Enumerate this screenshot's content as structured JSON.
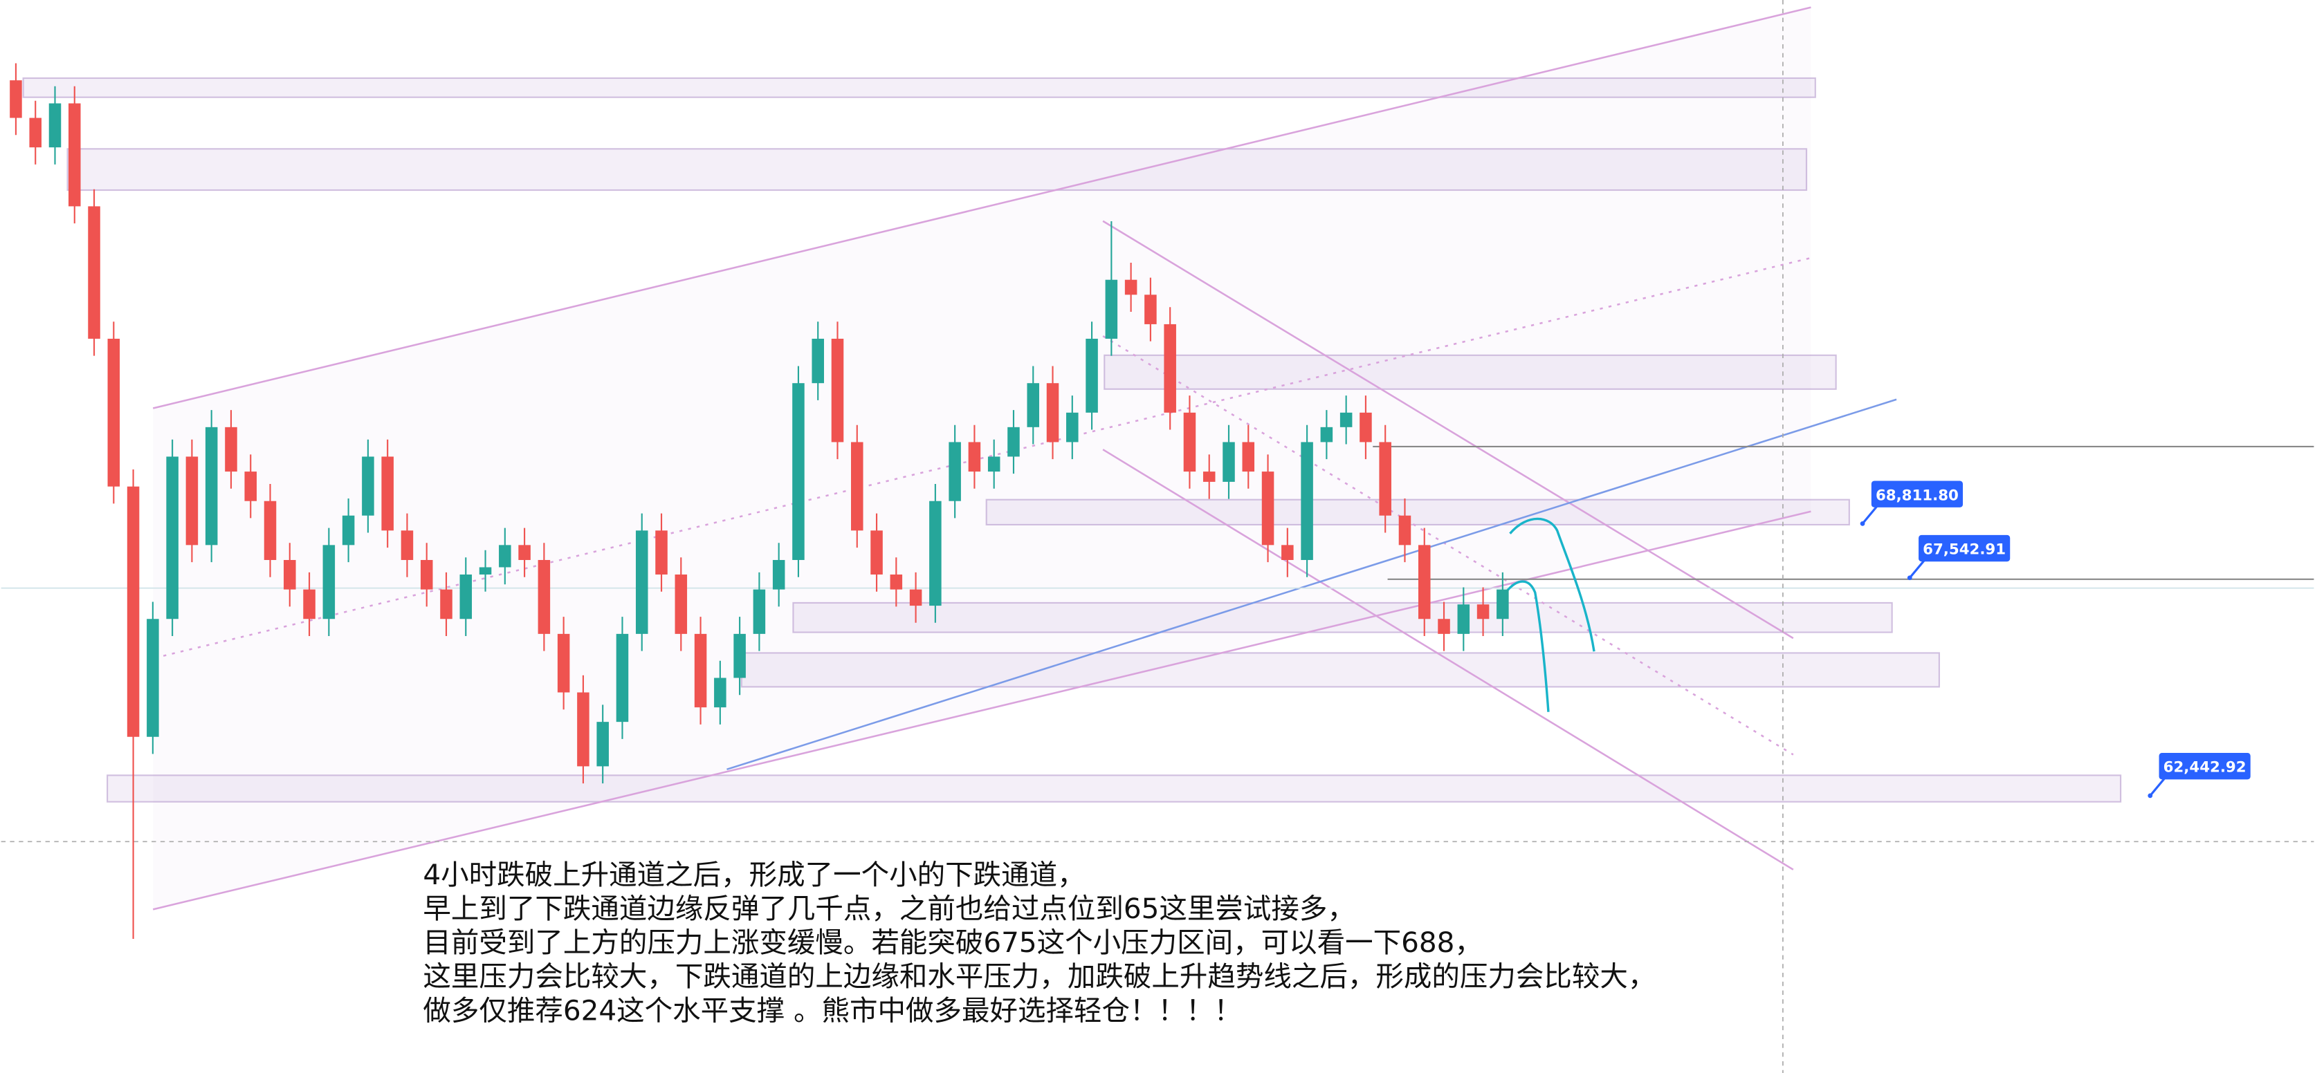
{
  "chart_data": {
    "type": "candlestick",
    "ylim": [
      55260,
      80380
    ],
    "up_color": "#26a69a",
    "down_color": "#ef5350",
    "open": [
      78500,
      77620,
      76930,
      77960,
      75550,
      72450,
      68990,
      63130,
      65890,
      69690,
      67620,
      70380,
      69340,
      68650,
      67270,
      66580,
      65890,
      67620,
      68310,
      69690,
      67960,
      67270,
      66580,
      65890,
      66930,
      67100,
      67620,
      67270,
      65540,
      64170,
      62440,
      63480,
      65540,
      67960,
      66930,
      65540,
      63820,
      64510,
      65540,
      66580,
      67270,
      71410,
      72450,
      70030,
      67960,
      66930,
      66580,
      66200,
      68650,
      70030,
      69340,
      69690,
      70380,
      71410,
      70030,
      70720,
      72450,
      73830,
      73480,
      72790,
      70720,
      69340,
      69100,
      70030,
      69340,
      67620,
      67270,
      70030,
      70380,
      70720,
      70030,
      68310,
      67620,
      65890,
      65540,
      66230,
      65890
    ],
    "high": [
      78900,
      78020,
      78360,
      78360,
      75950,
      72850,
      69390,
      66290,
      70090,
      70090,
      70780,
      70780,
      69740,
      69050,
      67670,
      66980,
      68020,
      68710,
      70090,
      70090,
      68360,
      67670,
      66980,
      67330,
      67500,
      68020,
      68020,
      67670,
      65940,
      64570,
      63880,
      65940,
      68360,
      68360,
      67330,
      65940,
      64910,
      65940,
      66980,
      67670,
      71810,
      72850,
      72850,
      70430,
      68360,
      67330,
      66980,
      69050,
      70430,
      70430,
      70090,
      70780,
      71810,
      71810,
      71120,
      72850,
      75200,
      74230,
      73880,
      73190,
      71120,
      69740,
      70430,
      70430,
      69740,
      68020,
      70430,
      70780,
      71120,
      71120,
      70430,
      68710,
      68020,
      66290,
      66630,
      66630,
      66980
    ],
    "low": [
      77220,
      76530,
      76530,
      75150,
      72050,
      68590,
      58400,
      62730,
      65490,
      67220,
      67220,
      68940,
      68250,
      66870,
      66180,
      65490,
      65490,
      67220,
      67910,
      67560,
      66870,
      66180,
      65490,
      65490,
      66530,
      66700,
      66870,
      65140,
      63770,
      62040,
      62040,
      63080,
      65140,
      66530,
      65140,
      63420,
      63420,
      64110,
      65140,
      66180,
      66870,
      71010,
      69630,
      67560,
      66530,
      66180,
      65800,
      65800,
      68250,
      68940,
      68940,
      69290,
      69980,
      69630,
      69630,
      70320,
      72050,
      73080,
      72390,
      70320,
      68940,
      68700,
      68700,
      68940,
      67220,
      66870,
      66870,
      69630,
      69980,
      69630,
      67910,
      67220,
      65490,
      65140,
      65140,
      65490,
      65490
    ],
    "close": [
      77620,
      76930,
      77960,
      75550,
      72450,
      68990,
      63130,
      65890,
      69690,
      67620,
      70380,
      69340,
      68650,
      67270,
      66580,
      65890,
      67620,
      68310,
      69690,
      67960,
      67270,
      66580,
      65890,
      66930,
      67100,
      67620,
      67270,
      65540,
      64170,
      62440,
      63480,
      65540,
      67960,
      66930,
      65540,
      63820,
      64510,
      65540,
      66580,
      67270,
      71410,
      72450,
      70030,
      67960,
      66930,
      66580,
      66200,
      68650,
      70030,
      69340,
      69690,
      70380,
      71410,
      70030,
      70720,
      72450,
      73830,
      73480,
      72790,
      70720,
      69340,
      69100,
      70030,
      69340,
      67620,
      67270,
      70030,
      70380,
      70720,
      70030,
      68310,
      67620,
      65890,
      65540,
      66230,
      65890,
      66580
    ],
    "price_labels": {
      "values": [
        68811.8,
        67542.91,
        62442.92
      ],
      "value_labels": [
        "68,811.80",
        "67,542.91",
        "62,442.92"
      ],
      "color": "#2962ff"
    },
    "annotation": [
      "4小时跌破上升通道之后，形成了一个小的下跌通道，",
      "早上到了下跌通道边缘反弹了几千点，之前也给过点位到65这里尝试接多，",
      "目前受到了上方的压力上涨变缓慢。若能突破675这个小压力区间，可以看一下688，",
      "这里压力会比较大，下跌通道的上边缘和水平压力，加跌破上升趋势线之后，形成的压力会比较大，",
      "做多仅推荐624这个水平支撑 。熊市中做多最好选择轻仓！！！！"
    ]
  }
}
